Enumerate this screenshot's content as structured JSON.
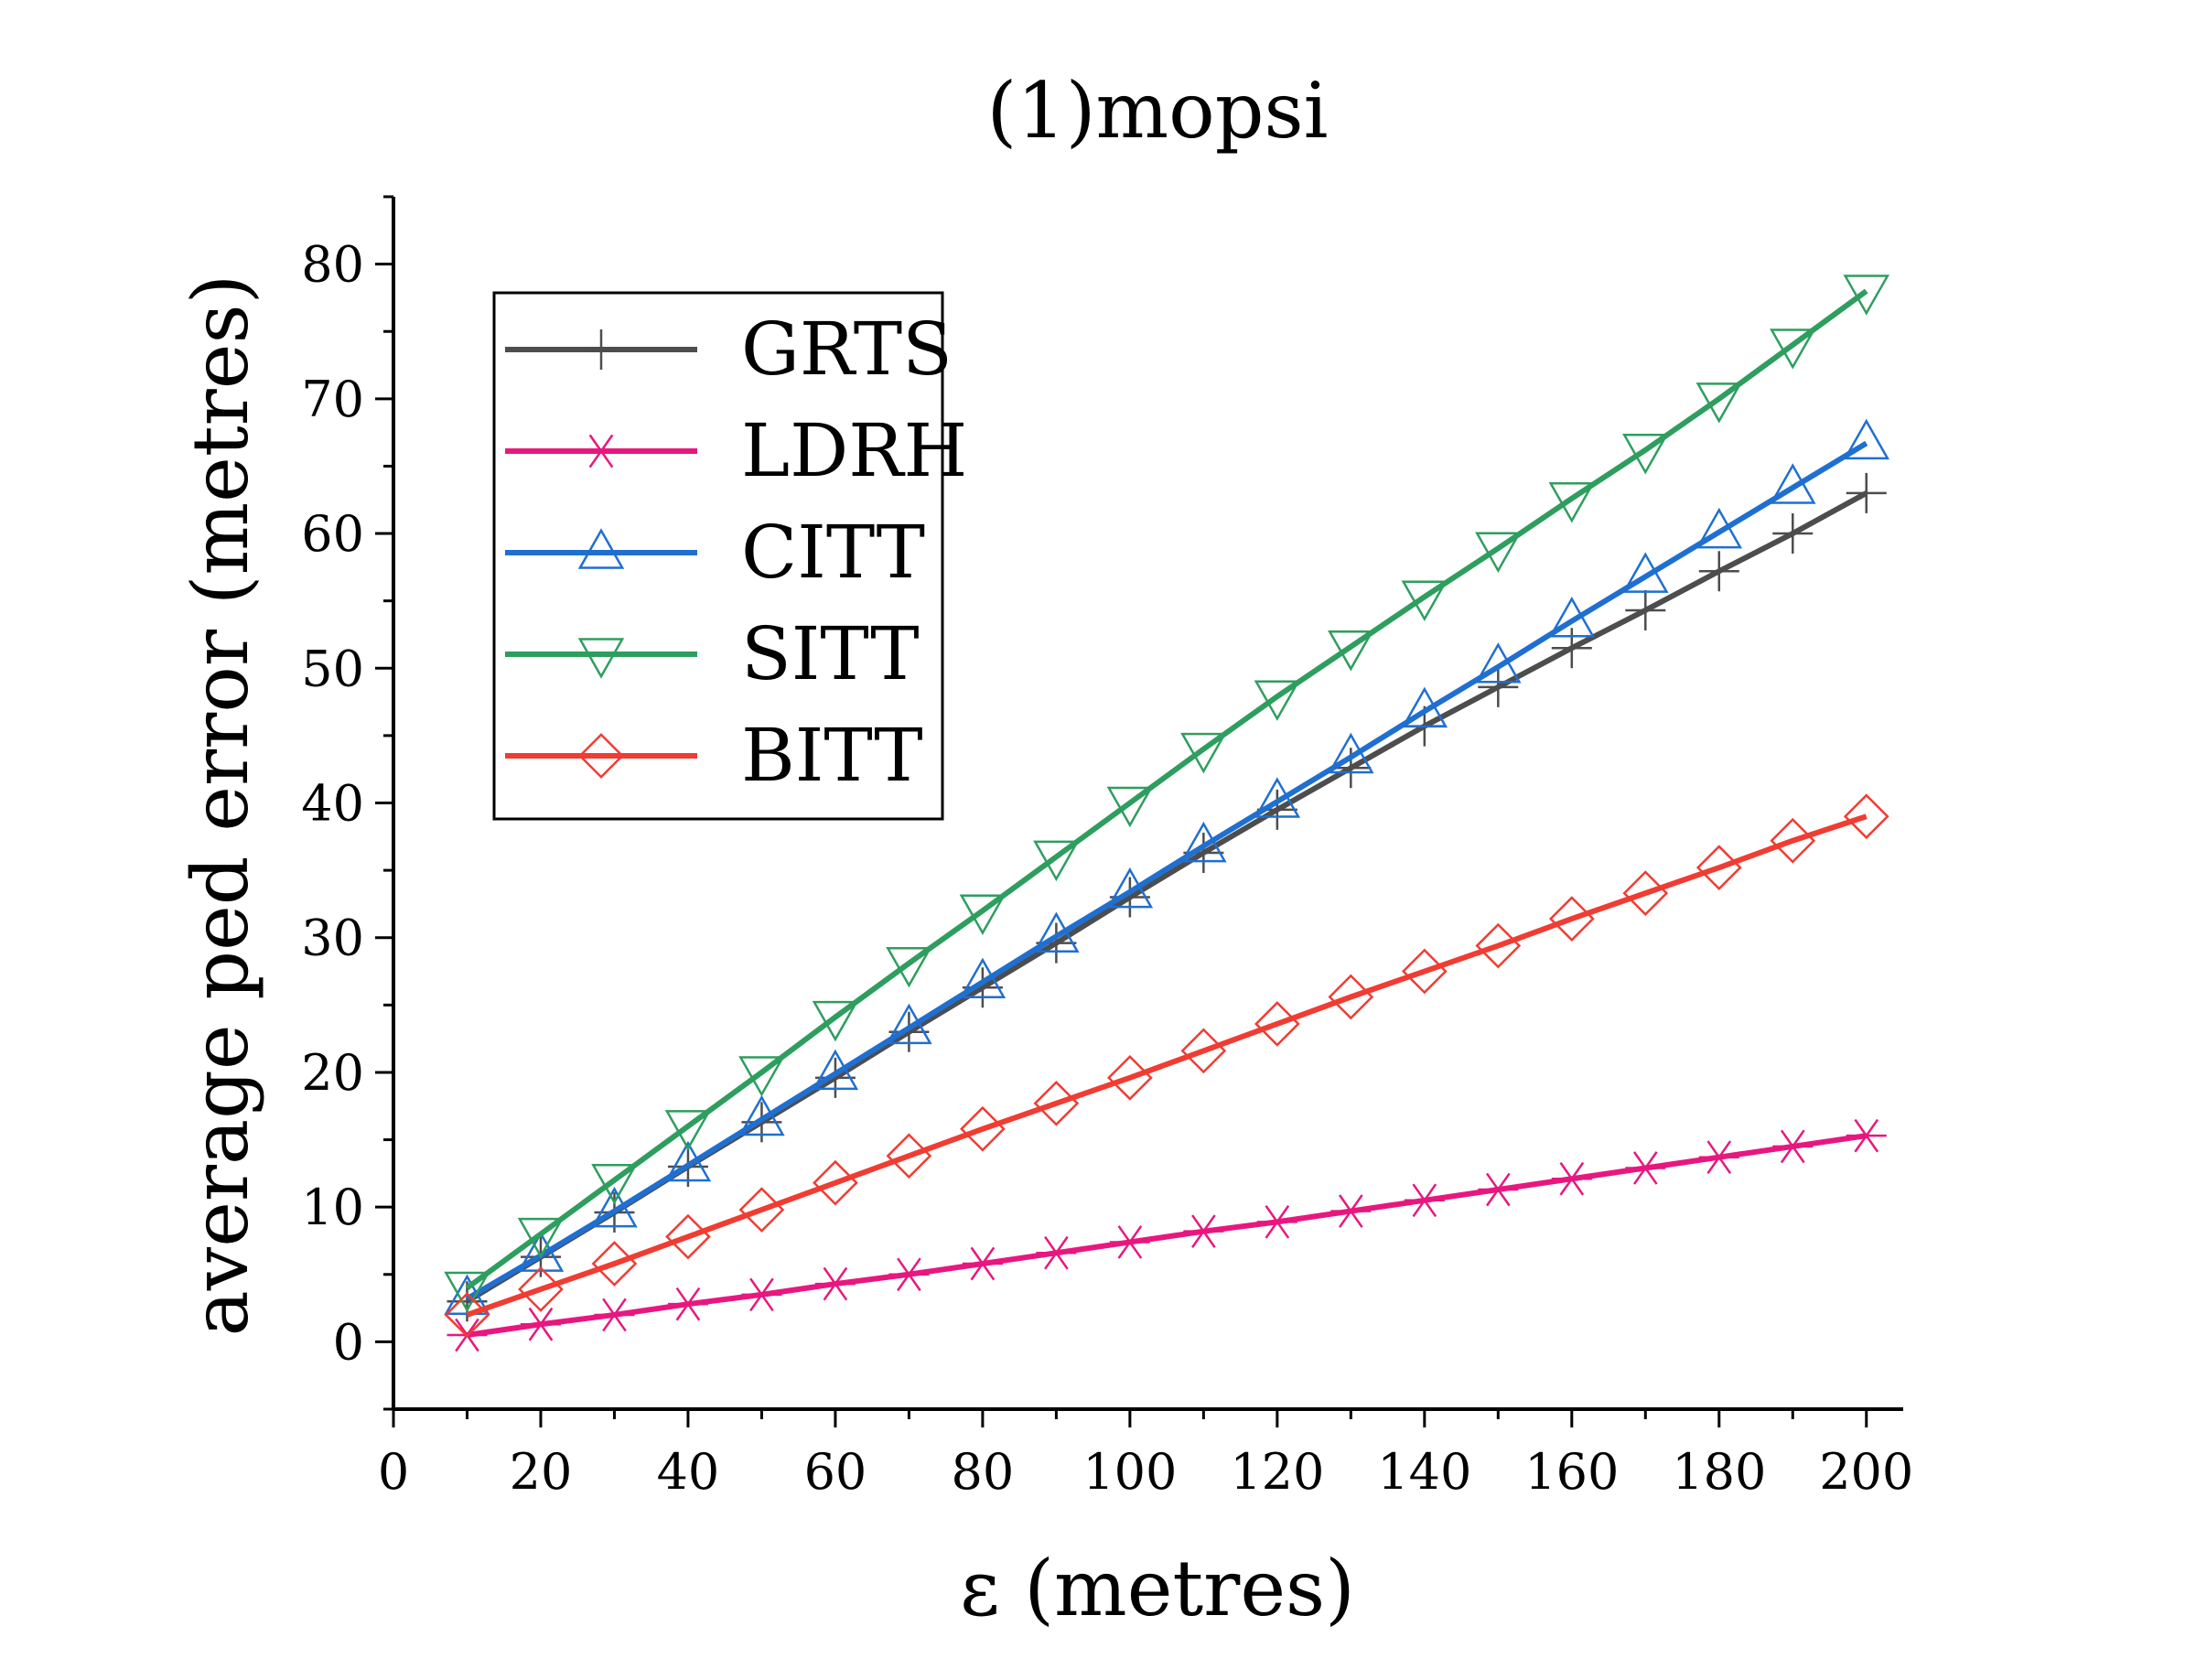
{
  "chart_data": {
    "type": "line",
    "title": "(1)mopsi",
    "xlabel": "ε  (metres)",
    "ylabel": "average ped error (metres)",
    "xlim": [
      0,
      205
    ],
    "ylim": [
      -5,
      85
    ],
    "xticks": [
      0,
      20,
      40,
      60,
      80,
      100,
      120,
      140,
      160,
      180,
      200
    ],
    "yticks": [
      0,
      10,
      20,
      30,
      40,
      50,
      60,
      70,
      80
    ],
    "x": [
      10,
      20,
      30,
      40,
      50,
      60,
      70,
      80,
      90,
      100,
      110,
      120,
      130,
      140,
      150,
      160,
      170,
      180,
      190,
      200
    ],
    "grid": false,
    "legend_position": "top-left",
    "series": [
      {
        "name": "GRTS",
        "color": "#4d4d4d",
        "marker": "plus",
        "values": [
          3.0,
          6.3,
          9.6,
          13.0,
          16.3,
          19.6,
          23.0,
          26.3,
          29.6,
          33.0,
          36.3,
          39.5,
          42.6,
          45.7,
          48.6,
          51.5,
          54.3,
          57.2,
          60.0,
          63.0
        ]
      },
      {
        "name": "LDRH",
        "color": "#e8177f",
        "marker": "asterisk",
        "values": [
          0.5,
          1.3,
          2.0,
          2.8,
          3.5,
          4.3,
          5.0,
          5.8,
          6.6,
          7.4,
          8.2,
          8.9,
          9.7,
          10.5,
          11.3,
          12.1,
          12.9,
          13.7,
          14.5,
          15.3
        ]
      },
      {
        "name": "CITT",
        "color": "#1f6fd1",
        "marker": "triangle-up",
        "values": [
          3.2,
          6.4,
          9.7,
          13.1,
          16.5,
          19.9,
          23.3,
          26.7,
          30.1,
          33.4,
          36.8,
          40.1,
          43.4,
          46.8,
          50.1,
          53.5,
          56.8,
          60.1,
          63.4,
          66.7
        ]
      },
      {
        "name": "SITT",
        "color": "#2e9e5e",
        "marker": "triangle-down",
        "values": [
          4.0,
          8.0,
          12.0,
          16.0,
          20.0,
          24.1,
          28.1,
          32.0,
          36.0,
          40.0,
          44.0,
          47.9,
          51.6,
          55.3,
          58.9,
          62.6,
          66.2,
          70.0,
          74.0,
          78.0
        ]
      },
      {
        "name": "BITT",
        "color": "#f03c32",
        "marker": "diamond",
        "values": [
          2.0,
          3.9,
          5.8,
          7.8,
          9.8,
          11.8,
          13.8,
          15.8,
          17.7,
          19.6,
          21.6,
          23.6,
          25.6,
          27.5,
          29.4,
          31.4,
          33.3,
          35.2,
          37.2,
          39.0
        ]
      }
    ]
  }
}
